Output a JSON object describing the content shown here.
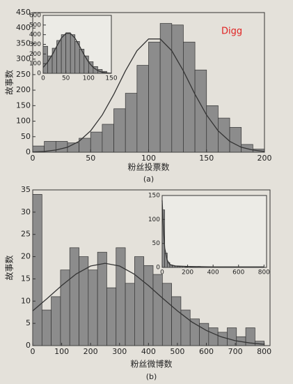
{
  "chart_data": [
    {
      "type": "histogram",
      "annotation": "Digg",
      "xlabel": "粉丝投票数",
      "ylabel": "故事数",
      "caption": "(a)",
      "bins": [
        0,
        10,
        20,
        30,
        40,
        50,
        60,
        70,
        80,
        90,
        100,
        110,
        120,
        130,
        140,
        150,
        160,
        170,
        180,
        190,
        200
      ],
      "values": [
        20,
        35,
        35,
        30,
        45,
        65,
        90,
        140,
        190,
        280,
        355,
        415,
        410,
        355,
        265,
        150,
        110,
        80,
        25,
        10
      ],
      "fit": {
        "x": [
          0,
          10,
          20,
          30,
          40,
          50,
          60,
          70,
          80,
          90,
          100,
          110,
          120,
          130,
          140,
          150,
          160,
          170,
          180,
          190,
          200
        ],
        "values": [
          1,
          2.5,
          7,
          16,
          35,
          69,
          120,
          187,
          262,
          327,
          365,
          365,
          327,
          262,
          187,
          120,
          69,
          35,
          16,
          7,
          2.5
        ]
      },
      "xlim": [
        0,
        200
      ],
      "ylim": [
        0,
        450
      ],
      "xticks": [
        0,
        50,
        100,
        150,
        200
      ],
      "yticks": [
        0,
        50,
        100,
        150,
        200,
        250,
        300,
        350,
        400,
        450
      ]
    },
    {
      "type": "histogram",
      "bins": [
        0,
        10,
        20,
        30,
        40,
        50,
        60,
        70,
        80,
        90,
        100,
        110,
        120,
        130,
        140
      ],
      "values": [
        280,
        180,
        260,
        340,
        400,
        420,
        400,
        330,
        250,
        180,
        120,
        70,
        40,
        20
      ],
      "fit": {
        "x": [
          0,
          10,
          20,
          30,
          40,
          50,
          60,
          70,
          80,
          90,
          100,
          110,
          120,
          130,
          140,
          150
        ],
        "values": [
          61,
          116,
          192,
          281,
          364,
          413,
          413,
          364,
          281,
          192,
          116,
          61,
          28,
          11,
          4,
          1
        ]
      },
      "xlim": [
        0,
        150
      ],
      "ylim": [
        0,
        600
      ],
      "xticks": [
        0,
        50,
        100,
        150
      ],
      "yticks": [
        0,
        100,
        200,
        300,
        400,
        500,
        600
      ]
    },
    {
      "type": "histogram",
      "annotation": "Twitter",
      "xlabel": "粉丝微博数",
      "ylabel": "故事数",
      "caption": "(b)",
      "bins": [
        0,
        32,
        64,
        96,
        128,
        160,
        192,
        224,
        256,
        288,
        320,
        352,
        384,
        416,
        448,
        480,
        512,
        544,
        576,
        608,
        640,
        672,
        704,
        736,
        768,
        800
      ],
      "values": [
        34,
        8,
        11,
        17,
        22,
        20,
        17,
        21,
        13,
        22,
        14,
        20,
        18,
        16,
        14,
        11,
        8,
        6,
        5,
        4,
        3,
        4,
        2,
        4,
        1
      ],
      "fit": {
        "x": [
          0,
          50,
          100,
          150,
          200,
          250,
          300,
          350,
          400,
          450,
          500,
          550,
          600,
          650,
          700,
          750,
          800
        ],
        "values": [
          7.8,
          10.6,
          13.5,
          16.1,
          17.9,
          18.5,
          17.9,
          16.1,
          13.5,
          10.6,
          7.8,
          5.3,
          3.4,
          2,
          1.1,
          0.6,
          0.3
        ]
      },
      "xlim": [
        0,
        820
      ],
      "ylim": [
        0,
        35
      ],
      "xticks": [
        0,
        100,
        200,
        300,
        400,
        500,
        600,
        700,
        800
      ],
      "yticks": [
        0,
        5,
        10,
        15,
        20,
        25,
        30,
        35
      ]
    },
    {
      "type": "histogram",
      "bins": [
        0,
        20,
        40,
        60,
        80,
        100,
        120,
        140,
        160,
        180,
        200,
        220,
        240,
        260,
        280,
        300,
        320,
        340,
        360,
        380,
        400,
        420,
        440,
        460,
        480,
        500,
        520,
        540,
        560,
        580,
        600,
        620,
        640,
        660,
        680,
        700,
        720,
        740,
        760,
        780,
        800
      ],
      "values": [
        120,
        30,
        10,
        5,
        4,
        3,
        2,
        2,
        2,
        1,
        2,
        1,
        1,
        1,
        2,
        1,
        1,
        1,
        1,
        1,
        1,
        1,
        1,
        1,
        1,
        1,
        1,
        1,
        1,
        1,
        1,
        1,
        1,
        1,
        1,
        1,
        1,
        1,
        1,
        1
      ],
      "fit": {
        "x": [
          0,
          10,
          20,
          40,
          60,
          100,
          200,
          400,
          800
        ],
        "values": [
          140,
          80,
          40,
          15,
          6,
          3,
          2,
          1,
          1
        ]
      },
      "xlim": [
        0,
        820
      ],
      "ylim": [
        0,
        150
      ],
      "xticks": [
        0,
        200,
        400,
        600,
        800
      ],
      "yticks": [
        0,
        50,
        100,
        150
      ]
    }
  ]
}
